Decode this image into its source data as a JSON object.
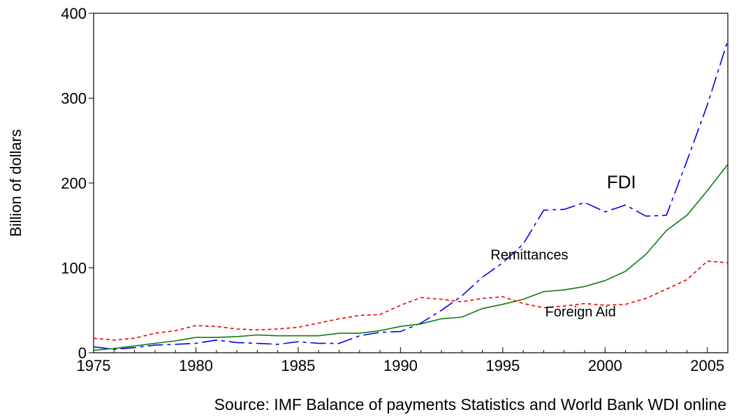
{
  "chart_data": {
    "type": "line",
    "title": "",
    "xlabel": "",
    "ylabel": "Billion of dollars",
    "xlim": [
      1975,
      2006
    ],
    "ylim": [
      0,
      400
    ],
    "x_ticks": [
      1975,
      1980,
      1985,
      1990,
      1995,
      2000,
      2005
    ],
    "y_ticks": [
      0,
      100,
      200,
      300,
      400
    ],
    "grid": false,
    "legend": "none",
    "x": [
      1975,
      1976,
      1977,
      1978,
      1979,
      1980,
      1981,
      1982,
      1983,
      1984,
      1985,
      1986,
      1987,
      1988,
      1989,
      1990,
      1991,
      1992,
      1993,
      1994,
      1995,
      1996,
      1997,
      1998,
      1999,
      2000,
      2001,
      2002,
      2003,
      2004,
      2005,
      2006
    ],
    "series": [
      {
        "name": "FDI",
        "color": "#0000ee",
        "dash": "22,6,5,6",
        "values": [
          7,
          4,
          6,
          9,
          10,
          11,
          15,
          12,
          11,
          10,
          13,
          11,
          11,
          20,
          24,
          25,
          35,
          50,
          67,
          89,
          106,
          128,
          168,
          169,
          177,
          166,
          174,
          161,
          162,
          226,
          292,
          368
        ]
      },
      {
        "name": "Remittances",
        "color": "#107a10",
        "dash": "",
        "values": [
          3,
          5,
          8,
          11,
          14,
          18,
          18,
          19,
          21,
          20,
          20,
          20,
          23,
          23,
          26,
          31,
          34,
          40,
          42,
          52,
          57,
          63,
          72,
          74,
          78,
          85,
          96,
          116,
          144,
          162,
          191,
          222
        ]
      },
      {
        "name": "Foreign Aid",
        "color": "#ee0000",
        "dash": "5,4",
        "values": [
          17,
          15,
          17,
          23,
          26,
          32,
          31,
          28,
          27,
          28,
          30,
          35,
          40,
          44,
          45,
          56,
          65,
          63,
          60,
          64,
          66,
          58,
          53,
          55,
          58,
          56,
          57,
          64,
          75,
          86,
          108,
          106
        ]
      }
    ],
    "annotations": [
      {
        "text": "FDI",
        "x": 2000.8,
        "y": 194,
        "size": 26
      },
      {
        "text": "Remittances",
        "x": 1996.3,
        "y": 110,
        "size": 20
      },
      {
        "text": "Foreign Aid",
        "x": 1998.8,
        "y": 43,
        "size": 20
      }
    ]
  },
  "source_note": "Source: IMF Balance of payments Statistics and World Bank WDI online"
}
